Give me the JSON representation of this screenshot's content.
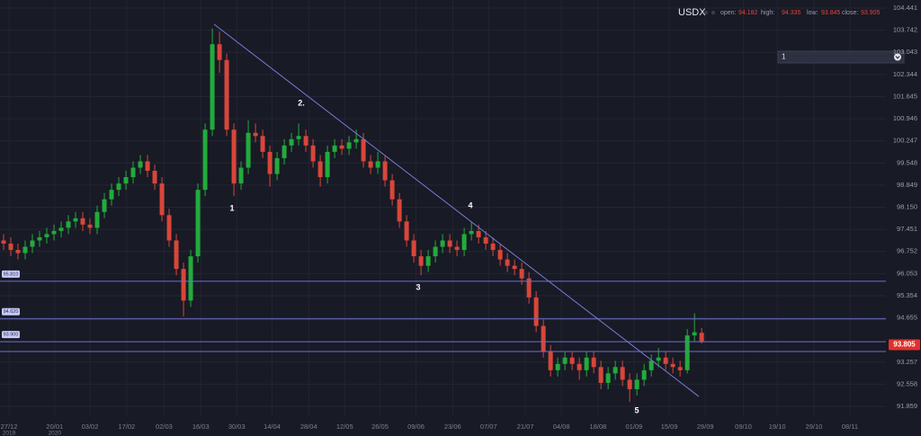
{
  "chart_data": {
    "type": "candlestick",
    "title": "USDX",
    "header_labels": [
      "open:",
      "high:",
      "low:",
      "close:"
    ],
    "selector": "1",
    "up_color": "#22ab3c",
    "down_color": "#d8463a",
    "grid": true,
    "candles": {
      "open": [
        97.1,
        97.0,
        96.8,
        96.7,
        96.9,
        97.1,
        97.2,
        97.3,
        97.4,
        97.5,
        97.7,
        97.8,
        97.6,
        97.5,
        98.0,
        98.4,
        98.7,
        98.9,
        99.1,
        99.4,
        99.6,
        99.3,
        98.9,
        97.9,
        97.1,
        96.2,
        95.2,
        96.6,
        98.7,
        100.6,
        103.3,
        102.8,
        100.6,
        98.9,
        99.4,
        100.5,
        100.4,
        99.9,
        99.2,
        99.7,
        100.1,
        100.3,
        100.4,
        100.1,
        99.6,
        99.1,
        99.9,
        100.1,
        100.0,
        100.2,
        100.3,
        99.6,
        99.4,
        99.6,
        99.0,
        98.4,
        97.7,
        97.1,
        96.6,
        96.3,
        96.6,
        96.9,
        97.1,
        96.9,
        96.8,
        97.3,
        97.4,
        97.2,
        97.0,
        96.8,
        96.5,
        96.3,
        96.2,
        95.9,
        95.3,
        94.4,
        93.6,
        93.0,
        93.2,
        93.4,
        93.2,
        93.0,
        93.4,
        93.1,
        92.6,
        92.9,
        93.1,
        92.7,
        92.4,
        92.7,
        93.0,
        93.3,
        93.4,
        93.2,
        93.1,
        93.0,
        94.1,
        94.182
      ],
      "high": [
        97.3,
        97.2,
        97.0,
        97.1,
        97.3,
        97.4,
        97.5,
        97.6,
        97.7,
        97.9,
        98.0,
        98.0,
        97.8,
        98.2,
        98.6,
        98.9,
        99.1,
        99.3,
        99.6,
        99.8,
        99.8,
        99.5,
        99.1,
        98.1,
        97.3,
        96.4,
        96.8,
        98.9,
        100.8,
        103.8,
        103.7,
        103.0,
        100.8,
        99.6,
        100.9,
        100.8,
        100.6,
        100.1,
        99.9,
        100.3,
        100.5,
        100.8,
        100.6,
        100.3,
        99.8,
        100.1,
        100.3,
        100.3,
        100.4,
        100.6,
        100.5,
        99.8,
        99.9,
        99.8,
        99.2,
        98.6,
        97.9,
        97.3,
        96.8,
        96.8,
        97.1,
        97.3,
        97.3,
        97.1,
        97.5,
        97.7,
        97.6,
        97.4,
        97.2,
        97.0,
        96.7,
        96.5,
        96.4,
        96.1,
        95.5,
        94.6,
        93.8,
        93.4,
        93.6,
        93.6,
        93.4,
        93.6,
        93.6,
        93.3,
        93.1,
        93.3,
        93.3,
        92.9,
        92.9,
        93.2,
        93.5,
        93.7,
        93.6,
        93.4,
        93.3,
        94.3,
        94.8,
        94.335
      ],
      "low": [
        96.8,
        96.6,
        96.5,
        96.5,
        96.7,
        96.9,
        97.0,
        97.1,
        97.2,
        97.3,
        97.5,
        97.4,
        97.3,
        97.3,
        97.8,
        98.2,
        98.5,
        98.7,
        98.9,
        99.2,
        99.1,
        98.7,
        97.7,
        96.9,
        96.0,
        94.7,
        95.0,
        96.4,
        98.5,
        100.4,
        102.4,
        100.4,
        98.5,
        98.7,
        99.2,
        100.2,
        99.7,
        98.8,
        99.0,
        99.5,
        99.9,
        100.1,
        99.9,
        99.4,
        98.8,
        98.9,
        99.7,
        99.8,
        99.8,
        100.0,
        99.4,
        99.2,
        99.2,
        98.8,
        98.2,
        97.5,
        96.9,
        96.4,
        96.0,
        96.1,
        96.4,
        96.7,
        96.7,
        96.6,
        96.6,
        97.1,
        97.0,
        96.8,
        96.6,
        96.3,
        96.1,
        96.0,
        95.7,
        95.1,
        94.2,
        93.4,
        92.8,
        92.8,
        93.0,
        93.0,
        92.7,
        92.8,
        92.9,
        92.4,
        92.4,
        92.7,
        92.5,
        92.0,
        92.2,
        92.5,
        92.8,
        93.1,
        93.0,
        92.9,
        92.8,
        92.9,
        93.9,
        93.845
      ],
      "close": [
        97.0,
        96.8,
        96.7,
        96.9,
        97.1,
        97.2,
        97.3,
        97.4,
        97.5,
        97.7,
        97.8,
        97.6,
        97.5,
        98.0,
        98.4,
        98.7,
        98.9,
        99.1,
        99.4,
        99.6,
        99.3,
        98.9,
        97.9,
        97.1,
        96.2,
        95.2,
        96.6,
        98.7,
        100.6,
        103.3,
        102.8,
        100.6,
        98.9,
        99.4,
        100.5,
        100.4,
        99.9,
        99.2,
        99.7,
        100.1,
        100.3,
        100.4,
        100.1,
        99.6,
        99.1,
        99.9,
        100.1,
        100.0,
        100.2,
        100.3,
        99.6,
        99.4,
        99.6,
        99.0,
        98.4,
        97.7,
        97.1,
        96.6,
        96.3,
        96.6,
        96.9,
        97.1,
        96.9,
        96.8,
        97.3,
        97.4,
        97.2,
        97.0,
        96.8,
        96.5,
        96.3,
        96.2,
        95.9,
        95.3,
        94.4,
        93.6,
        93.0,
        93.2,
        93.4,
        93.2,
        93.0,
        93.4,
        93.1,
        92.6,
        92.9,
        93.1,
        92.7,
        92.4,
        92.7,
        93.0,
        93.3,
        93.4,
        93.2,
        93.1,
        93.0,
        94.1,
        94.2,
        93.905
      ]
    },
    "last_price": 93.805,
    "last_price_color": "#e0312b",
    "hlines": [
      {
        "value": 95.81,
        "label": "95.810"
      },
      {
        "value": 94.62,
        "label": "94.620"
      },
      {
        "value": 93.9,
        "label": "93.900"
      },
      {
        "value": 93.59
      }
    ],
    "hline_color": "#6f6fd0",
    "trendline": {
      "x": [
        29.25,
        96.6
      ],
      "y": [
        103.93,
        92.17
      ],
      "color": "#7a7ad8"
    },
    "annotations": [
      "1",
      "2.",
      "3",
      "4",
      "5"
    ],
    "xlim": [
      -0.5,
      122.6
    ],
    "ylim": [
      91.575,
      104.697
    ],
    "xticks": [
      {
        "value": 0.75,
        "label": "27/12",
        "sublabel": "2019"
      },
      {
        "value": 7.1,
        "label": "20/01",
        "sublabel": "2020"
      },
      {
        "value": 12,
        "label": "03/02"
      },
      {
        "value": 17.1,
        "label": "17/02"
      },
      {
        "value": 22.3,
        "label": "02/03"
      },
      {
        "value": 27.4,
        "label": "16/03"
      },
      {
        "value": 32.4,
        "label": "30/03"
      },
      {
        "value": 37.3,
        "label": "14/04"
      },
      {
        "value": 42.4,
        "label": "28/04"
      },
      {
        "value": 47.4,
        "label": "12/05"
      },
      {
        "value": 52.3,
        "label": "26/05"
      },
      {
        "value": 57.3,
        "label": "09/06"
      },
      {
        "value": 62.4,
        "label": "23/06"
      },
      {
        "value": 67.4,
        "label": "07/07"
      },
      {
        "value": 72.5,
        "label": "21/07"
      },
      {
        "value": 77.5,
        "label": "04/08"
      },
      {
        "value": 82.6,
        "label": "18/08"
      },
      {
        "value": 87.6,
        "label": "01/09"
      },
      {
        "value": 92.5,
        "label": "15/09"
      },
      {
        "value": 97.5,
        "label": "29/09"
      },
      {
        "value": 102.8,
        "label": "09/10"
      },
      {
        "value": 107.5,
        "label": "19/10"
      },
      {
        "value": 112.6,
        "label": "29/10"
      },
      {
        "value": 117.6,
        "label": "08/11"
      }
    ],
    "yticks": [
      {
        "value": 104.441,
        "label": "104.441"
      },
      {
        "value": 103.742,
        "label": "103.742"
      },
      {
        "value": 103.043,
        "label": "103.043"
      },
      {
        "value": 102.344,
        "label": "102.344"
      },
      {
        "value": 101.645,
        "label": "101.645"
      },
      {
        "value": 100.946,
        "label": "100.946"
      },
      {
        "value": 100.247,
        "label": "100.247"
      },
      {
        "value": 99.548,
        "label": "99.548"
      },
      {
        "value": 98.849,
        "label": "98.849"
      },
      {
        "value": 98.15,
        "label": "98.150"
      },
      {
        "value": 97.451,
        "label": "97.451"
      },
      {
        "value": 96.752,
        "label": "96.752"
      },
      {
        "value": 96.053,
        "label": "96.053"
      },
      {
        "value": 95.354,
        "label": "95.354"
      },
      {
        "value": 94.655,
        "label": "94.655"
      },
      {
        "value": 93.257,
        "label": "93.257"
      },
      {
        "value": 92.558,
        "label": "92.558"
      },
      {
        "value": 91.859,
        "label": "91.859"
      }
    ]
  }
}
